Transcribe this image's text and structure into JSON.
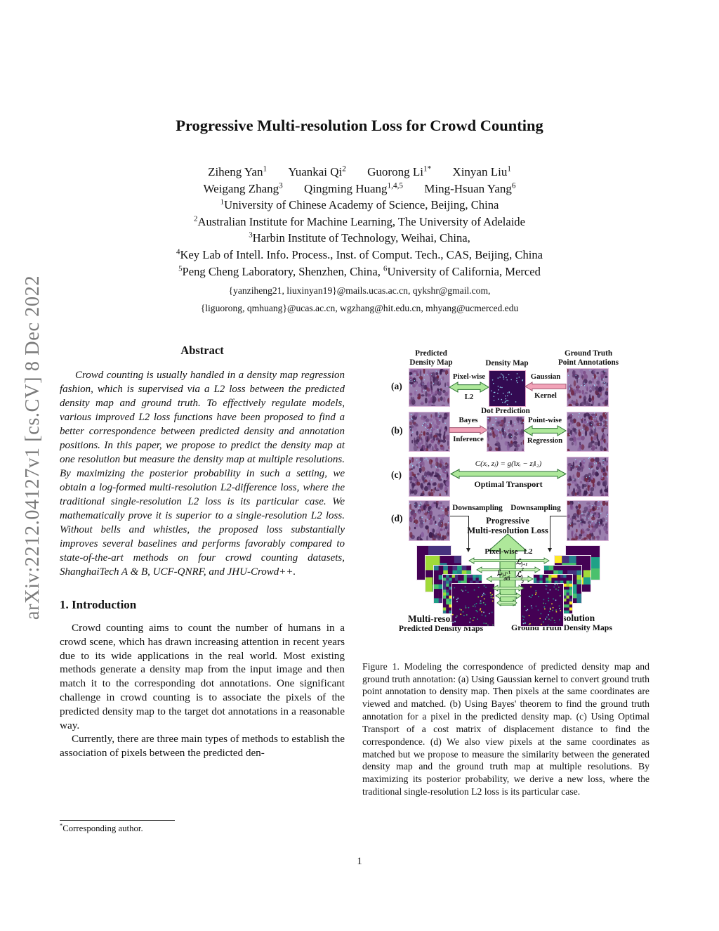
{
  "arxiv_label": "arXiv:2212.04127v1  [cs.CV]  8 Dec 2022",
  "title": "Progressive Multi-resolution Loss for Crowd Counting",
  "authors_row1": [
    {
      "name": "Ziheng Yan",
      "sup": "1"
    },
    {
      "name": "Yuankai Qi",
      "sup": "2"
    },
    {
      "name": "Guorong Li",
      "sup": "1*"
    },
    {
      "name": "Xinyan Liu",
      "sup": "1"
    }
  ],
  "authors_row2": [
    {
      "name": "Weigang Zhang",
      "sup": "3"
    },
    {
      "name": "Qingming Huang",
      "sup": "1,4,5"
    },
    {
      "name": "Ming-Hsuan Yang",
      "sup": "6"
    }
  ],
  "affiliations": [
    {
      "parts": [
        {
          "sup": "1",
          "text": "University of Chinese Academy of Science, Beijing, China"
        }
      ]
    },
    {
      "parts": [
        {
          "sup": "2",
          "text": "Australian Institute for Machine Learning, The University of Adelaide"
        }
      ]
    },
    {
      "parts": [
        {
          "sup": "3",
          "text": "Harbin Institute of Technology, Weihai, China,"
        }
      ]
    },
    {
      "parts": [
        {
          "sup": "4",
          "text": "Key Lab of Intell. Info. Process., Inst. of Comput. Tech., CAS, Beijing, China"
        }
      ]
    },
    {
      "parts": [
        {
          "sup": "5",
          "text": "Peng Cheng Laboratory, Shenzhen, China, "
        },
        {
          "sup": "6",
          "text": "University of California, Merced"
        }
      ]
    }
  ],
  "emails": [
    "{yanziheng21, liuxinyan19}@mails.ucas.ac.cn, qykshr@gmail.com,",
    "{liguorong, qmhuang}@ucas.ac.cn, wgzhang@hit.edu.cn, mhyang@ucmerced.edu"
  ],
  "abstract": {
    "heading": "Abstract",
    "text": "Crowd counting is usually handled in a density map regression fashion, which is supervised via a L2 loss between the predicted density map and ground truth. To effectively regulate models, various improved L2 loss functions have been proposed to find a better correspondence between predicted density and annotation positions. In this paper, we propose to predict the density map at one resolution but measure the density map at multiple resolutions. By maximizing the posterior probability in such a setting, we obtain a log-formed multi-resolution L2-difference loss, where the traditional single-resolution L2 loss is its particular case. We mathematically prove it is superior to a single-resolution L2 loss. Without bells and whistles, the proposed loss substantially improves several baselines and performs favorably compared to state-of-the-art methods on four crowd counting datasets, ShanghaiTech A & B, UCF-QNRF, and JHU-Crowd++."
  },
  "intro": {
    "heading": "1. Introduction",
    "para1": "Crowd counting aims to count the number of humans in a crowd scene, which has drawn increasing attention in recent years due to its wide applications in the real world. Most existing methods generate a density map from the input image and then match it to the corresponding dot annotations. One significant challenge in crowd counting is to associate the pixels of the predicted density map to the target dot annotations in a reasonable way.",
    "para2": "Currently, there are three main types of methods to establish the association of pixels between the predicted den-"
  },
  "footnote": {
    "sup": "*",
    "text": "Corresponding author."
  },
  "page_number": "1",
  "figure": {
    "col_labels": {
      "left": "Predicted\nDensity Map",
      "mid": "Density Map",
      "right": "Ground Truth\nPoint Annotations"
    },
    "row_labels": {
      "a": "(a)",
      "b": "(b)",
      "c": "(c)",
      "d": "(d)"
    },
    "a": {
      "arrow_left_top": "Pixel-wise",
      "arrow_left_bottom": "L2",
      "arrow_right_top": "Gaussian",
      "arrow_right_bottom": "Kernel"
    },
    "b": {
      "mid_title": "Dot Prediction",
      "arrow_left_top": "Bayes",
      "arrow_left_bottom": "Inference",
      "arrow_right_top": "Point-wise",
      "arrow_right_bottom": "Regression"
    },
    "c": {
      "formula": "C(xᵢ, zⱼ) = g(‖xᵢ − zⱼ‖₂)",
      "arrow_bottom": "Optimal Transport"
    },
    "d": {
      "down_left": "Downsampling",
      "down_right": "Downsampling",
      "loss_title": "Progressive\nMulti-resolution Loss",
      "pixelwise": "Pixel-wise   L2"
    },
    "losses": {
      "l2_next": {
        "base": "ℒ",
        "sup": "j+1",
        "sub": "2"
      },
      "ldiff": {
        "base": "ℒ",
        "sup": "j,j+1",
        "sub": "diff"
      },
      "l2": {
        "base": "ℒ",
        "sup": "j",
        "sub": "2"
      }
    },
    "bottom_left": {
      "line1": "Multi-resolution",
      "line2": "Predicted Density Maps"
    },
    "bottom_right": {
      "line1": "Multi-resolution",
      "line2": "Ground Truth Density Maps"
    },
    "caption": "Figure 1. Modeling the correspondence of predicted density map and ground truth annotation: (a) Using Gaussian kernel to convert ground truth point annotation to density map. Then pixels at the same coordinates are viewed and matched. (b) Using Bayes' theorem to find the ground truth annotation for a pixel in the predicted density map. (c) Using Optimal Transport of a cost matrix of displacement distance to find the correspondence. (d) We also view pixels at the same coordinates as matched but we propose to measure the similarity between the generated density map and the ground truth map at multiple resolutions. By maximizing its posterior probability, we derive a new loss, where the traditional single-resolution L2 loss is its particular case."
  },
  "colors": {
    "arrow_green_fill": "#aee89a",
    "arrow_green_thin": "#c9f2b6",
    "arrow_green_stroke": "#2a7030",
    "arrow_pink_fill": "#f2a3b8",
    "arrow_pink_stroke": "#a05570",
    "crowd_base": "#9b7fae",
    "crowd_blobs": [
      "#5f3d72",
      "#4a2a5c",
      "#7b4a85",
      "#6e2440",
      "#3b1d4e",
      "#8a62a0"
    ],
    "crowd_dot": "#9adfff",
    "density_bg": "#330a52",
    "density_dot": "#8fd9ef",
    "viridis": [
      "#440154",
      "#46327e",
      "#365c8d",
      "#277f8e",
      "#1fa187",
      "#4ac16d",
      "#a0da39",
      "#fde725"
    ]
  }
}
